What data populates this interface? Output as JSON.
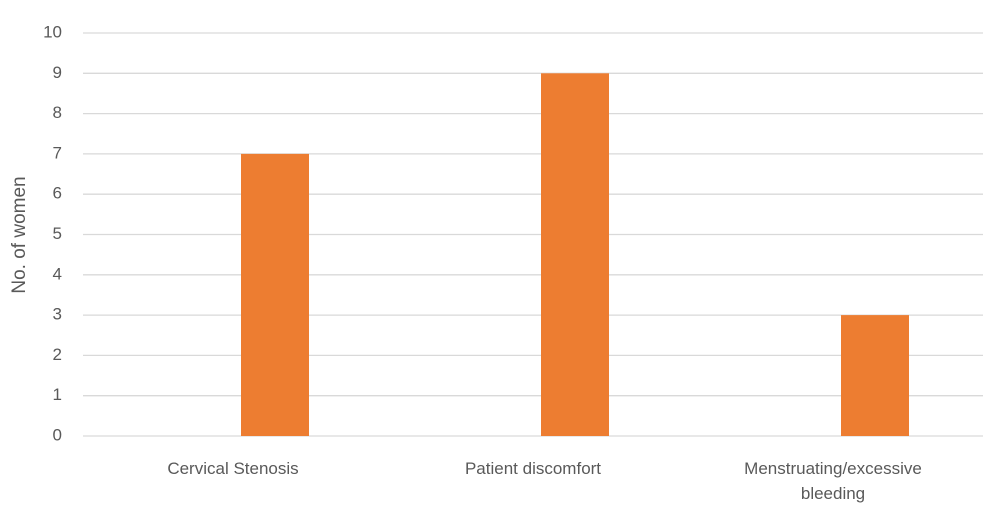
{
  "chart_data": {
    "type": "bar",
    "y_label": "No. of women",
    "categories": [
      "Cervical Stenosis",
      "Patient discomfort",
      "Menstruating/excessive bleeding"
    ],
    "values": [
      7,
      9,
      3
    ],
    "color": "#ed7d31",
    "ylim": [
      0,
      10
    ],
    "yticks": [
      0,
      1,
      2,
      3,
      4,
      5,
      6,
      7,
      8,
      9,
      10
    ],
    "grid": true
  }
}
